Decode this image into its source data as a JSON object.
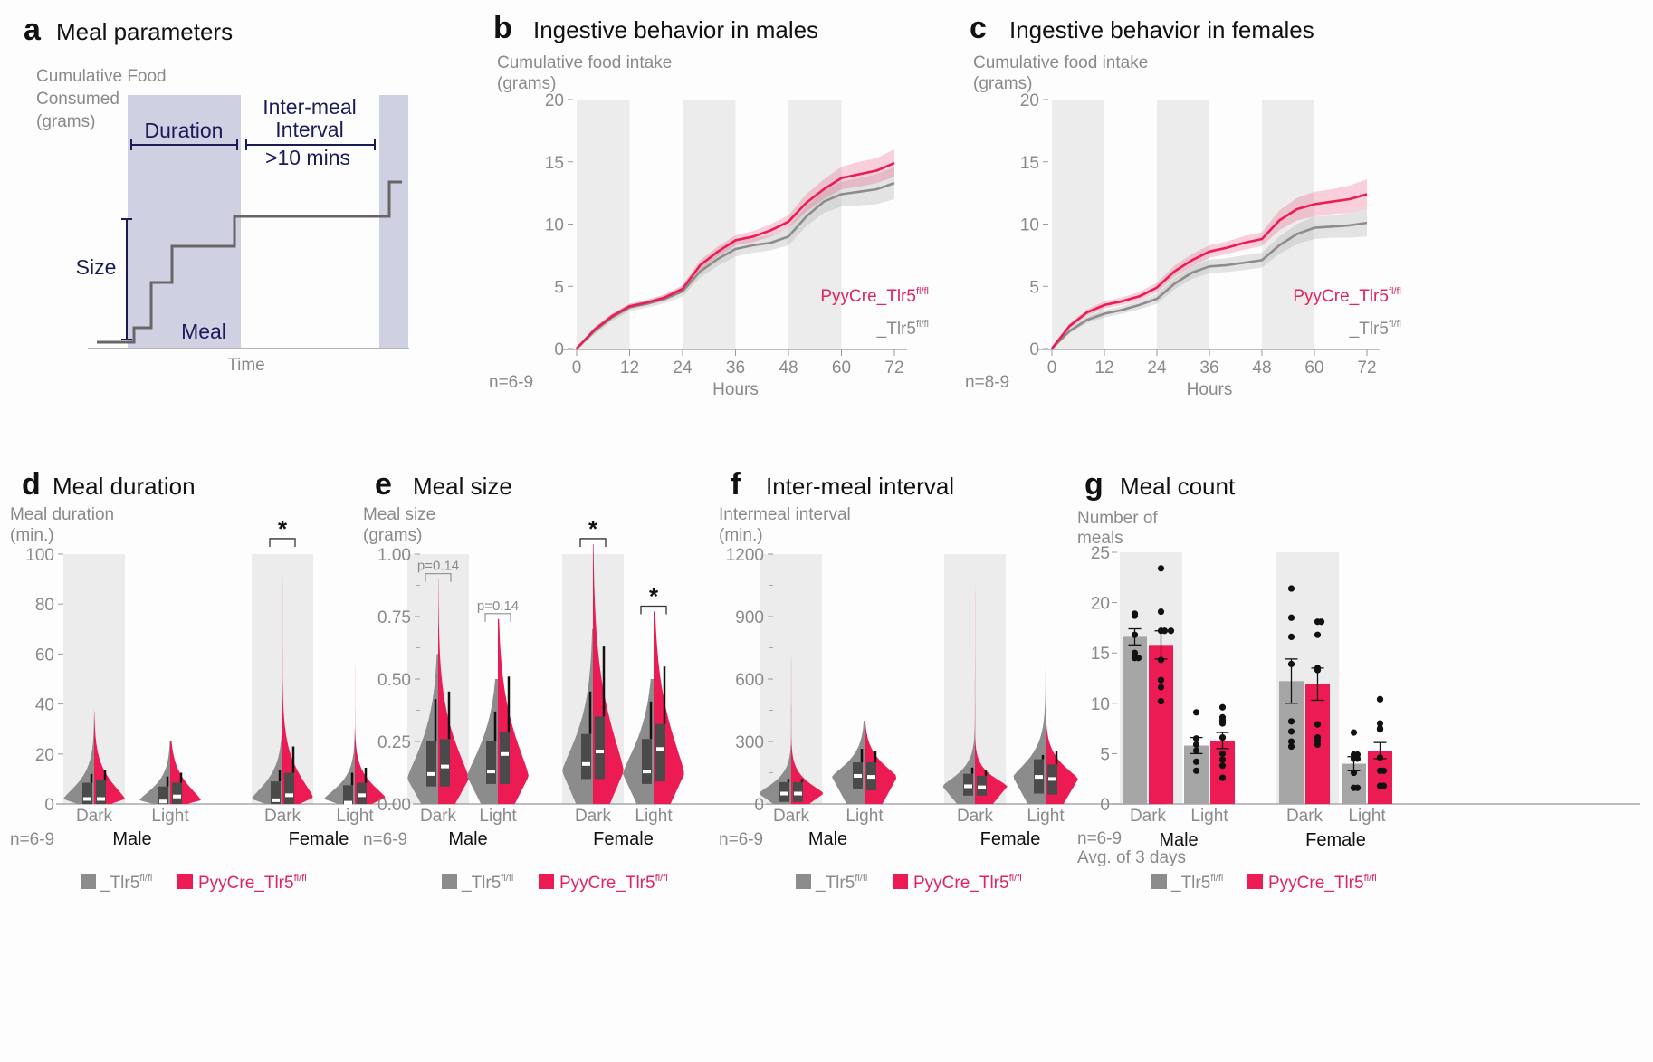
{
  "colors": {
    "control": "#8c8c8c",
    "control_bar": "#a6a6a6",
    "treatment": "#ec1b53",
    "navy": "#1b1b5a",
    "shade": "#ececec",
    "box": "#4a4a4a"
  },
  "legend": {
    "control": "_Tlr5",
    "control_sup": "fl/fl",
    "treatment": "PyyCre_Tlr5",
    "treatment_sup": "fl/fl"
  },
  "panel_a": {
    "letter": "a",
    "title": "Meal parameters",
    "ylabel_lines": [
      "Cumulative Food",
      "Consumed",
      "(grams)"
    ],
    "xlabel": "Time",
    "labels": {
      "duration": "Duration",
      "inter_meal_line1": "Inter-meal",
      "inter_meal_line2": "Interval",
      "inter_meal_threshold": ">10 mins",
      "size": "Size",
      "meal": "Meal"
    }
  },
  "chart_data": [
    {
      "id": "b",
      "type": "line",
      "letter": "b",
      "title": "Ingestive behavior in males",
      "ylabel_lines": [
        "Cumulative food intake",
        "(grams)"
      ],
      "xlabel": "Hours",
      "n_label": "n=6-9",
      "xlim": [
        0,
        72
      ],
      "ylim": [
        0,
        20
      ],
      "xticks": [
        0,
        12,
        24,
        36,
        48,
        60,
        72
      ],
      "yticks": [
        0,
        5,
        10,
        15,
        20
      ],
      "dark_periods": [
        [
          0,
          12
        ],
        [
          24,
          36
        ],
        [
          48,
          60
        ]
      ],
      "x": [
        0,
        4,
        8,
        12,
        16,
        20,
        24,
        28,
        32,
        36,
        40,
        44,
        48,
        52,
        56,
        60,
        64,
        68,
        72
      ],
      "series": [
        {
          "name": "_Tlr5 fl/fl",
          "values": [
            0,
            1.4,
            2.5,
            3.3,
            3.6,
            4.0,
            4.6,
            6.2,
            7.2,
            8.0,
            8.3,
            8.5,
            9.0,
            10.6,
            11.8,
            12.4,
            12.6,
            12.8,
            13.3
          ],
          "sem": [
            0,
            0.3,
            0.3,
            0.3,
            0.3,
            0.35,
            0.4,
            0.5,
            0.55,
            0.6,
            0.6,
            0.6,
            0.7,
            0.8,
            0.9,
            1.0,
            1.1,
            1.2,
            1.3
          ]
        },
        {
          "name": "PyyCre_Tlr5 fl/fl",
          "values": [
            0,
            1.5,
            2.6,
            3.4,
            3.7,
            4.1,
            4.8,
            6.7,
            7.8,
            8.7,
            9.0,
            9.5,
            10.2,
            11.7,
            12.8,
            13.7,
            14.0,
            14.3,
            14.9
          ],
          "sem": [
            0,
            0.2,
            0.2,
            0.2,
            0.2,
            0.25,
            0.3,
            0.4,
            0.4,
            0.4,
            0.45,
            0.5,
            0.5,
            0.7,
            0.8,
            0.9,
            1.0,
            1.0,
            1.1
          ]
        }
      ],
      "legend": [
        "PyyCre_Tlr5 fl/fl",
        "_Tlr5 fl/fl"
      ],
      "legend_position": "bottom-right"
    },
    {
      "id": "c",
      "type": "line",
      "letter": "c",
      "title": "Ingestive behavior in females",
      "ylabel_lines": [
        "Cumulative food intake",
        "(grams)"
      ],
      "xlabel": "Hours",
      "n_label": "n=8-9",
      "xlim": [
        0,
        72
      ],
      "ylim": [
        0,
        20
      ],
      "xticks": [
        0,
        12,
        24,
        36,
        48,
        60,
        72
      ],
      "yticks": [
        0,
        5,
        10,
        15,
        20
      ],
      "dark_periods": [
        [
          0,
          12
        ],
        [
          24,
          36
        ],
        [
          48,
          60
        ]
      ],
      "x": [
        0,
        4,
        8,
        12,
        16,
        20,
        24,
        28,
        32,
        36,
        40,
        44,
        48,
        52,
        56,
        60,
        64,
        68,
        72
      ],
      "series": [
        {
          "name": "_Tlr5 fl/fl",
          "values": [
            0,
            1.4,
            2.3,
            2.8,
            3.1,
            3.5,
            4.0,
            5.2,
            6.1,
            6.6,
            6.7,
            6.9,
            7.1,
            8.3,
            9.2,
            9.7,
            9.8,
            9.9,
            10.1
          ],
          "sem": [
            0,
            0.2,
            0.25,
            0.3,
            0.3,
            0.35,
            0.4,
            0.45,
            0.5,
            0.55,
            0.55,
            0.6,
            0.6,
            0.7,
            0.8,
            0.9,
            0.9,
            1.0,
            1.1
          ]
        },
        {
          "name": "PyyCre_Tlr5 fl/fl",
          "values": [
            0,
            1.8,
            2.9,
            3.5,
            3.8,
            4.2,
            4.9,
            6.2,
            7.1,
            7.8,
            8.1,
            8.5,
            8.8,
            10.3,
            11.2,
            11.6,
            11.8,
            12.0,
            12.4
          ],
          "sem": [
            0,
            0.2,
            0.25,
            0.3,
            0.3,
            0.35,
            0.4,
            0.45,
            0.5,
            0.5,
            0.5,
            0.55,
            0.55,
            0.8,
            0.9,
            1.0,
            1.0,
            1.1,
            1.2
          ]
        }
      ],
      "legend": [
        "PyyCre_Tlr5 fl/fl",
        "_Tlr5 fl/fl"
      ],
      "legend_position": "bottom-right"
    },
    {
      "id": "d",
      "type": "violin",
      "letter": "d",
      "title": "Meal duration",
      "ylabel_lines": [
        "Meal duration",
        "(min.)"
      ],
      "n_label": "n=6-9",
      "ylim": [
        0,
        100
      ],
      "yticks": [
        0,
        20,
        40,
        60,
        80,
        100
      ],
      "categories": [
        "Dark",
        "Light",
        "Dark",
        "Light"
      ],
      "groups": [
        "Male",
        "Female"
      ],
      "dark_shaded": [
        true,
        false,
        true,
        false
      ],
      "series": [
        {
          "name": "_Tlr5 fl/fl",
          "max": [
            38,
            25,
            40,
            30
          ],
          "q1": [
            0,
            0,
            0,
            0
          ],
          "median": [
            2,
            1,
            1.5,
            0.5
          ],
          "q3": [
            8.5,
            7,
            9,
            7.5
          ],
          "whisker": [
            12,
            11,
            13.5,
            12.5
          ],
          "peak": [
            2,
            1.5,
            2,
            2
          ]
        },
        {
          "name": "PyyCre_Tlr5 fl/fl",
          "max": [
            37,
            25,
            104,
            64
          ],
          "q1": [
            0,
            0,
            0,
            0
          ],
          "median": [
            2,
            3,
            3.5,
            3.5
          ],
          "q3": [
            9.5,
            8.5,
            12.5,
            8.5
          ],
          "whisker": [
            13.5,
            12.5,
            23,
            14.5
          ],
          "peak": [
            2,
            1.5,
            2.5,
            2.5
          ]
        }
      ],
      "annotations": [
        {
          "category_index": 2,
          "text": "*"
        }
      ]
    },
    {
      "id": "e",
      "type": "violin",
      "letter": "e",
      "title": "Meal size",
      "ylabel_lines": [
        "Meal size",
        "(grams)"
      ],
      "n_label": "n=6-9",
      "ylim": [
        0,
        1.0
      ],
      "yticks": [
        0.0,
        0.25,
        0.5,
        0.75,
        1.0
      ],
      "ytick_labels": [
        "0.00",
        "0.25",
        "0.50",
        "0.75",
        "1.00"
      ],
      "categories": [
        "Dark",
        "Light",
        "Dark",
        "Light"
      ],
      "groups": [
        "Male",
        "Female"
      ],
      "dark_shaded": [
        true,
        false,
        true,
        false
      ],
      "series": [
        {
          "name": "_Tlr5 fl/fl",
          "max": [
            0.6,
            0.5,
            0.7,
            0.5
          ],
          "q1": [
            0.07,
            0.08,
            0.1,
            0.08
          ],
          "median": [
            0.12,
            0.13,
            0.16,
            0.13
          ],
          "q3": [
            0.25,
            0.25,
            0.28,
            0.26
          ],
          "whisker": [
            0.42,
            0.37,
            0.45,
            0.41
          ],
          "peak": [
            0.1,
            0.11,
            0.13,
            0.12
          ]
        },
        {
          "name": "PyyCre_Tlr5 fl/fl",
          "max": [
            0.9,
            0.74,
            1.04,
            0.77
          ],
          "q1": [
            0.07,
            0.08,
            0.1,
            0.09
          ],
          "median": [
            0.15,
            0.2,
            0.21,
            0.22
          ],
          "q3": [
            0.26,
            0.29,
            0.35,
            0.32
          ],
          "whisker": [
            0.45,
            0.51,
            0.63,
            0.55
          ],
          "peak": [
            0.1,
            0.11,
            0.13,
            0.12
          ]
        }
      ],
      "annotations": [
        {
          "category_index": 0,
          "text": "p=0.14"
        },
        {
          "category_index": 1,
          "text": "p=0.14"
        },
        {
          "category_index": 2,
          "text": "*"
        },
        {
          "category_index": 3,
          "text": "*"
        }
      ]
    },
    {
      "id": "f",
      "type": "violin",
      "letter": "f",
      "title": "Inter-meal interval",
      "ylabel_lines": [
        "Intermeal interval",
        "(min.)"
      ],
      "n_label": "n=6-9",
      "ylim": [
        0,
        1200
      ],
      "yticks": [
        0,
        300,
        600,
        900,
        1200
      ],
      "categories": [
        "Dark",
        "Light",
        "Dark",
        "Light"
      ],
      "groups": [
        "Male",
        "Female"
      ],
      "dark_shaded": [
        true,
        false,
        true,
        false
      ],
      "series": [
        {
          "name": "_Tlr5 fl/fl",
          "max": [
            820,
            400,
            700,
            700
          ],
          "q1": [
            10,
            70,
            40,
            50
          ],
          "median": [
            50,
            135,
            85,
            130
          ],
          "q3": [
            105,
            200,
            145,
            215
          ],
          "whisker": [
            120,
            265,
            175,
            235
          ],
          "peak": [
            50,
            130,
            85,
            130
          ]
        },
        {
          "name": "PyyCre_Tlr5 fl/fl",
          "max": [
            800,
            805,
            1190,
            690
          ],
          "q1": [
            10,
            65,
            40,
            45
          ],
          "median": [
            50,
            130,
            80,
            120
          ],
          "q3": [
            105,
            200,
            135,
            190
          ],
          "whisker": [
            120,
            255,
            160,
            255
          ],
          "peak": [
            50,
            130,
            85,
            120
          ]
        }
      ],
      "annotations": []
    },
    {
      "id": "g",
      "type": "bar",
      "letter": "g",
      "title": "Meal count",
      "ylabel_lines": [
        "Number of",
        "meals"
      ],
      "n_label": "n=6-9",
      "note": "Avg. of 3 days",
      "ylim": [
        0,
        25
      ],
      "yticks": [
        0,
        5,
        10,
        15,
        20,
        25
      ],
      "categories": [
        "Dark",
        "Light",
        "Dark",
        "Light"
      ],
      "groups": [
        "Male",
        "Female"
      ],
      "dark_shaded": [
        true,
        false,
        true,
        false
      ],
      "series": [
        {
          "name": "_Tlr5 fl/fl",
          "values": [
            16.6,
            5.8,
            12.2,
            4.0
          ],
          "sem": [
            0.8,
            0.8,
            2.2,
            0.7
          ],
          "points": [
            [
              18.7,
              18.9,
              16.8,
              15.0,
              14.5,
              14.5
            ],
            [
              9.1,
              6.5,
              5.9,
              5.3,
              4.2,
              3.3
            ],
            [
              21.4,
              18.5,
              16.6,
              13.9,
              8.2,
              7.2,
              6.2,
              5.7
            ],
            [
              7.1,
              4.9,
              4.9,
              4.5,
              4.5,
              3.1,
              1.6,
              1.6
            ]
          ]
        },
        {
          "name": "PyyCre_Tlr5 fl/fl",
          "values": [
            15.8,
            6.3,
            11.9,
            5.3
          ],
          "sem": [
            1.4,
            0.8,
            1.6,
            0.8
          ],
          "points": [
            [
              23.4,
              19.1,
              17.2,
              17.2,
              17.2,
              14.3,
              12.3,
              11.6,
              10.2
            ],
            [
              9.6,
              8.6,
              8.3,
              8.0,
              6.6,
              5.0,
              4.4,
              3.8,
              2.6
            ],
            [
              18.1,
              18.1,
              16.8,
              13.5,
              13.3,
              7.9,
              6.6,
              6.3,
              5.9
            ],
            [
              10.4,
              8.0,
              7.5,
              7.4,
              4.6,
              3.3,
              3.3,
              1.8,
              1.8
            ]
          ]
        }
      ],
      "annotations": []
    }
  ]
}
